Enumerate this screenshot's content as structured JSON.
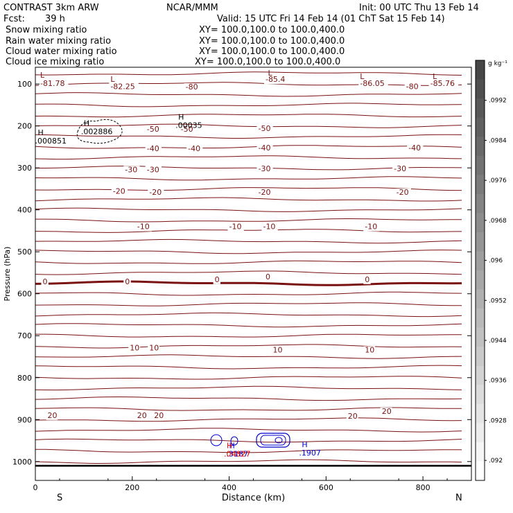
{
  "header": {
    "model": "CONTRAST  3km ARW",
    "center": "NCAR/MMM",
    "init": "Init: 00 UTC Thu 13 Feb 14",
    "fcst_label": "Fcst:",
    "fcst_value": "39 h",
    "valid": "Valid: 15 UTC Fri 14 Feb 14 (01 ChT Sat 15 Feb 14)"
  },
  "fields": [
    {
      "name": "Snow mixing ratio",
      "xy": "XY= 100.0,100.0 to 100.0,400.0",
      "color": "#000000"
    },
    {
      "name": "Rain water mixing ratio",
      "xy": "XY= 100.0,100.0 to 100.0,400.0",
      "color": "#e00000"
    },
    {
      "name": "Cloud water mixing ratio",
      "xy": "XY= 100.0,100.0 to 100.0,400.0",
      "color": "#0000cc"
    },
    {
      "name": "Cloud ice mixing ratio",
      "xy": "XY= 100.0,100.0 to 100.0,400.0",
      "color": "#000000"
    }
  ],
  "colors": {
    "temperature_contour": "#7a1010",
    "cloud_water": "#0000cc",
    "rain": "#e00000"
  },
  "chart_data": {
    "type": "contour",
    "xlabel": "Distance (km)",
    "ylabel": "Pressure (hPa)",
    "xlim": [
      0,
      900
    ],
    "ylim_hpa": [
      1045,
      60
    ],
    "x_ticks": [
      0,
      200,
      400,
      600,
      800
    ],
    "y_ticks": [
      100,
      200,
      300,
      400,
      500,
      600,
      700,
      800,
      900,
      1000
    ],
    "endpoints": {
      "left": "S",
      "right": "N"
    },
    "y_scale": "linear",
    "grid": false,
    "colorbar": {
      "unit": "g kg⁻¹",
      "placement": "right",
      "labels": [
        ".0992",
        ".0984",
        ".0976",
        ".0968",
        ".096",
        ".0952",
        ".0944",
        ".0936",
        ".0928",
        ".092"
      ]
    },
    "isotherm_labels": [
      {
        "text": "-81.78",
        "x": 10,
        "p": 105
      },
      {
        "text": "-82.25",
        "x": 155,
        "p": 112
      },
      {
        "text": "-80",
        "x": 310,
        "p": 113
      },
      {
        "text": "-85.4",
        "x": 475,
        "p": 95
      },
      {
        "text": "-86.05",
        "x": 670,
        "p": 105
      },
      {
        "text": "-80",
        "x": 765,
        "p": 112
      },
      {
        "text": "-85.76",
        "x": 815,
        "p": 105
      },
      {
        "text": "-50",
        "x": 230,
        "p": 214
      },
      {
        "text": "-50",
        "x": 300,
        "p": 214
      },
      {
        "text": "-50",
        "x": 460,
        "p": 212
      },
      {
        "text": "-40",
        "x": 230,
        "p": 260
      },
      {
        "text": "-40",
        "x": 315,
        "p": 260
      },
      {
        "text": "-40",
        "x": 460,
        "p": 258
      },
      {
        "text": "-40",
        "x": 770,
        "p": 258
      },
      {
        "text": "-30",
        "x": 185,
        "p": 310
      },
      {
        "text": "-30",
        "x": 230,
        "p": 310
      },
      {
        "text": "-30",
        "x": 460,
        "p": 308
      },
      {
        "text": "-30",
        "x": 740,
        "p": 308
      },
      {
        "text": "-20",
        "x": 160,
        "p": 362
      },
      {
        "text": "-20",
        "x": 235,
        "p": 364
      },
      {
        "text": "-20",
        "x": 460,
        "p": 364
      },
      {
        "text": "-20",
        "x": 745,
        "p": 364
      },
      {
        "text": "-10",
        "x": 210,
        "p": 446
      },
      {
        "text": "-10",
        "x": 400,
        "p": 446
      },
      {
        "text": "-10",
        "x": 470,
        "p": 446
      },
      {
        "text": "-10",
        "x": 680,
        "p": 446
      },
      {
        "text": "0",
        "x": 15,
        "p": 577
      },
      {
        "text": "0",
        "x": 185,
        "p": 577
      },
      {
        "text": "0",
        "x": 370,
        "p": 572
      },
      {
        "text": "0",
        "x": 475,
        "p": 566
      },
      {
        "text": "0",
        "x": 680,
        "p": 572
      },
      {
        "text": "10",
        "x": 195,
        "p": 735
      },
      {
        "text": "10",
        "x": 235,
        "p": 735
      },
      {
        "text": "10",
        "x": 490,
        "p": 740
      },
      {
        "text": "10",
        "x": 680,
        "p": 740
      },
      {
        "text": "20",
        "x": 25,
        "p": 896
      },
      {
        "text": "20",
        "x": 210,
        "p": 896
      },
      {
        "text": "20",
        "x": 245,
        "p": 896
      },
      {
        "text": "20",
        "x": 645,
        "p": 898
      },
      {
        "text": "20",
        "x": 715,
        "p": 886
      }
    ],
    "extrema": [
      {
        "mark": "L",
        "x": 10,
        "p": 85,
        "color": "#7a1010"
      },
      {
        "mark": "L",
        "x": 155,
        "p": 95,
        "color": "#7a1010"
      },
      {
        "mark": "L",
        "x": 480,
        "p": 80,
        "color": "#7a1010"
      },
      {
        "mark": "L",
        "x": 670,
        "p": 88,
        "color": "#7a1010"
      },
      {
        "mark": "L",
        "x": 820,
        "p": 88,
        "color": "#7a1010"
      },
      {
        "mark": "H",
        "x": 100,
        "p": 200,
        "value": ".002886",
        "color": "#000000"
      },
      {
        "mark": "H",
        "x": 295,
        "p": 185,
        "value": ".00035",
        "color": "#000000"
      },
      {
        "mark": "H",
        "x": 5,
        "p": 222,
        "value": ".000851",
        "color": "#000000"
      },
      {
        "mark": "H",
        "x": 400,
        "p": 968,
        "value": ".3187",
        "color": "#0000cc"
      },
      {
        "mark": "H",
        "x": 550,
        "p": 966,
        "value": ".1907",
        "color": "#0000cc"
      },
      {
        "mark": "H",
        "x": 395,
        "p": 968,
        "value": ".04827",
        "color": "#e00000"
      }
    ]
  }
}
